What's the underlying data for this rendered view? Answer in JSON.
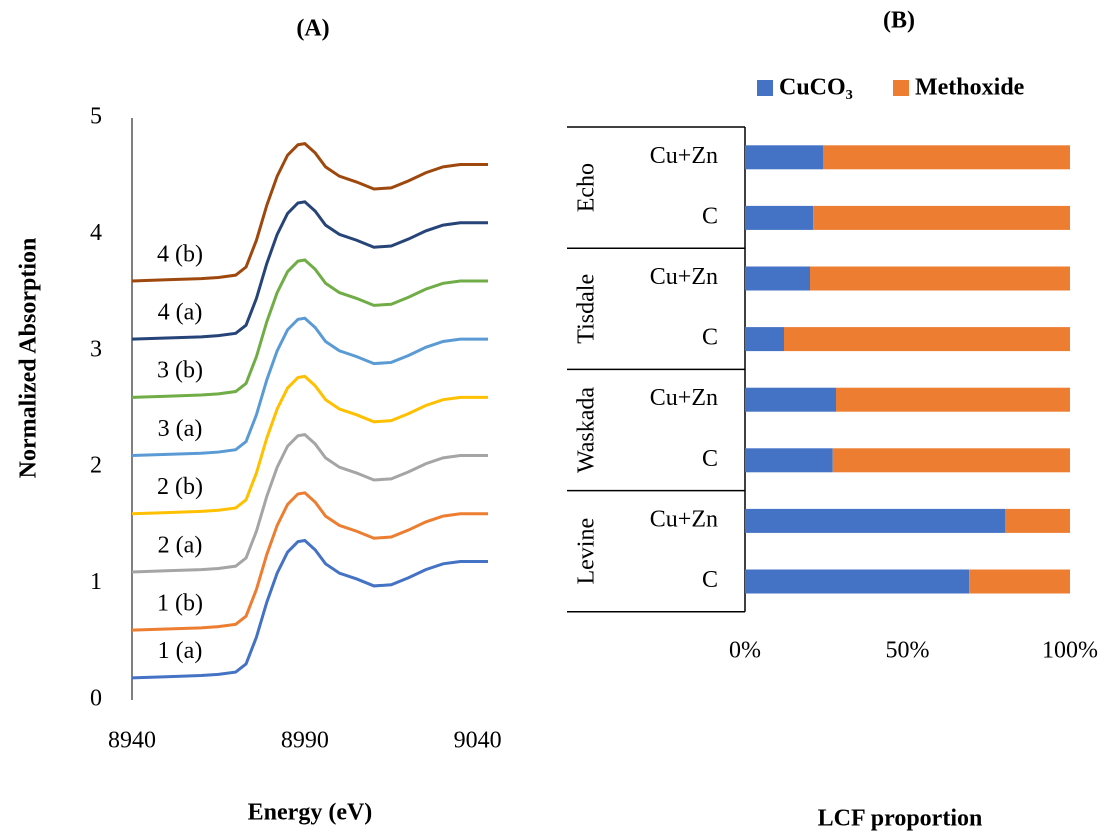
{
  "chart_data": [
    {
      "type": "line",
      "title": "(A)",
      "x_label": "Energy (eV)",
      "y_label": "Normalized Absorption",
      "x": [
        8940,
        8950,
        8960,
        8965,
        8970,
        8973,
        8976,
        8979,
        8982,
        8985,
        8988,
        8990,
        8993,
        8996,
        9000,
        9005,
        9010,
        9015,
        9020,
        9025,
        9030,
        9035,
        9043
      ],
      "series": [
        {
          "name": "1 (a)",
          "color": "#4472c4",
          "values": [
            0.19,
            0.2,
            0.21,
            0.22,
            0.24,
            0.31,
            0.54,
            0.84,
            1.09,
            1.27,
            1.36,
            1.37,
            1.29,
            1.17,
            1.09,
            1.04,
            0.98,
            0.99,
            1.05,
            1.12,
            1.17,
            1.19,
            1.19
          ]
        },
        {
          "name": "1 (b)",
          "color": "#ed7d31",
          "values": [
            0.6,
            0.61,
            0.62,
            0.63,
            0.65,
            0.72,
            0.95,
            1.25,
            1.5,
            1.68,
            1.77,
            1.78,
            1.7,
            1.58,
            1.5,
            1.45,
            1.39,
            1.4,
            1.46,
            1.53,
            1.58,
            1.6,
            1.6
          ]
        },
        {
          "name": "2 (a)",
          "color": "#a5a5a5",
          "values": [
            1.1,
            1.11,
            1.12,
            1.13,
            1.15,
            1.22,
            1.45,
            1.75,
            2.0,
            2.18,
            2.27,
            2.28,
            2.2,
            2.08,
            2.0,
            1.95,
            1.89,
            1.9,
            1.96,
            2.03,
            2.08,
            2.1,
            2.1
          ]
        },
        {
          "name": "2 (b)",
          "color": "#ffc000",
          "values": [
            1.6,
            1.61,
            1.62,
            1.63,
            1.65,
            1.72,
            1.95,
            2.25,
            2.5,
            2.68,
            2.77,
            2.78,
            2.7,
            2.58,
            2.5,
            2.45,
            2.39,
            2.4,
            2.46,
            2.53,
            2.58,
            2.6,
            2.6
          ]
        },
        {
          "name": "3 (a)",
          "color": "#5b9bd5",
          "values": [
            2.1,
            2.11,
            2.12,
            2.13,
            2.15,
            2.22,
            2.45,
            2.75,
            3.0,
            3.18,
            3.27,
            3.28,
            3.2,
            3.08,
            3.0,
            2.95,
            2.89,
            2.9,
            2.96,
            3.03,
            3.08,
            3.1,
            3.1
          ]
        },
        {
          "name": "3 (b)",
          "color": "#70ad47",
          "values": [
            2.6,
            2.61,
            2.62,
            2.63,
            2.65,
            2.72,
            2.95,
            3.25,
            3.5,
            3.68,
            3.77,
            3.78,
            3.7,
            3.58,
            3.5,
            3.45,
            3.39,
            3.4,
            3.46,
            3.53,
            3.58,
            3.6,
            3.6
          ]
        },
        {
          "name": "4 (a)",
          "color": "#264478",
          "values": [
            3.1,
            3.11,
            3.12,
            3.13,
            3.15,
            3.22,
            3.45,
            3.75,
            4.0,
            4.18,
            4.27,
            4.28,
            4.2,
            4.08,
            4.0,
            3.95,
            3.89,
            3.9,
            3.96,
            4.03,
            4.08,
            4.1,
            4.1
          ]
        },
        {
          "name": "4 (b)",
          "color": "#9e480e",
          "values": [
            3.6,
            3.61,
            3.62,
            3.63,
            3.65,
            3.72,
            3.95,
            4.25,
            4.5,
            4.68,
            4.77,
            4.78,
            4.7,
            4.58,
            4.5,
            4.45,
            4.39,
            4.4,
            4.46,
            4.53,
            4.58,
            4.6,
            4.6
          ]
        }
      ],
      "xlim": [
        8940,
        9043
      ],
      "xticks": [
        8940,
        8990,
        9040
      ],
      "ylim": [
        0,
        5
      ],
      "yticks": [
        0,
        1,
        2,
        3,
        4,
        5
      ]
    },
    {
      "type": "bar",
      "orientation": "horizontal",
      "stacked": true,
      "title": "(B)",
      "x_label": "LCF proportion",
      "groups": [
        "Echo",
        "Tisdale",
        "Waskada",
        "Levine"
      ],
      "categories": [
        "Cu+Zn",
        "C",
        "Cu+Zn",
        "C",
        "Cu+Zn",
        "C",
        "Cu+Zn",
        "C"
      ],
      "series": [
        {
          "name": "CuCO₃",
          "color": "#4472c4",
          "values": [
            24,
            21,
            20,
            12,
            28,
            27,
            80,
            69
          ]
        },
        {
          "name": "Methoxide",
          "color": "#ed7d31",
          "values": [
            76,
            79,
            80,
            88,
            72,
            73,
            20,
            31
          ]
        }
      ],
      "xlim": [
        0,
        100
      ],
      "xticks": [
        {
          "value": 0,
          "label": "0%"
        },
        {
          "value": 50,
          "label": "50%"
        },
        {
          "value": 100,
          "label": "100%"
        }
      ],
      "legend": "top"
    }
  ]
}
